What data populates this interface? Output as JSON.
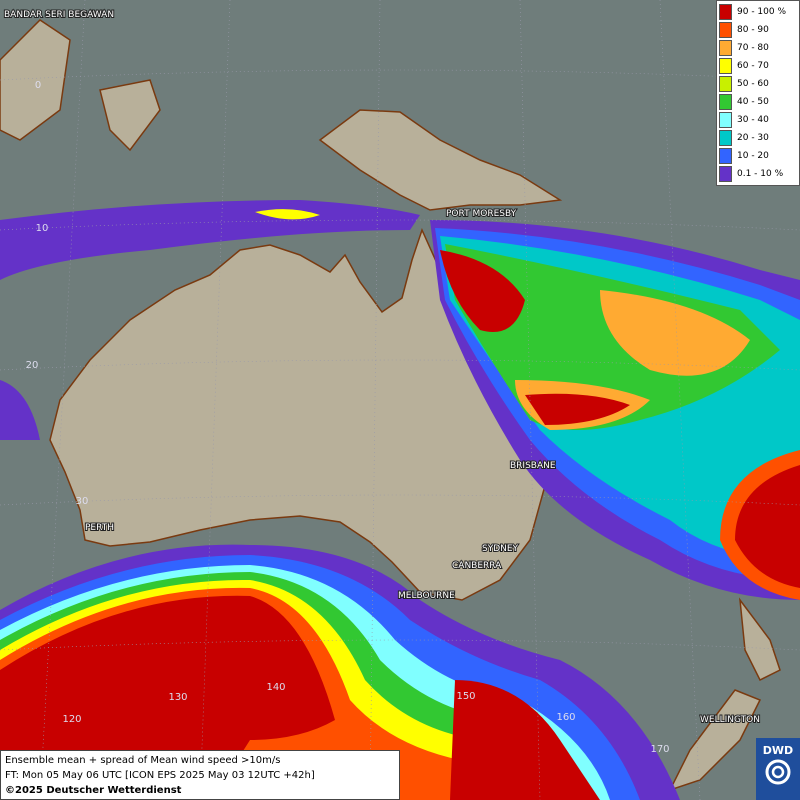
{
  "map": {
    "cities": [
      "BANDAR SERI BEGAWAN",
      "PORT MORESBY",
      "BRISBANE",
      "PERTH",
      "SYDNEY",
      "CANBERRA",
      "MELBOURNE",
      "WELLINGTON"
    ],
    "lat_labels": [
      "0",
      "10",
      "20",
      "30"
    ],
    "lon_labels": [
      "120",
      "130",
      "140",
      "150",
      "160",
      "170"
    ]
  },
  "legend": {
    "items": [
      {
        "label": "90 - 100 %",
        "color": "#c80000"
      },
      {
        "label": "80 - 90",
        "color": "#ff5000"
      },
      {
        "label": "70 - 80",
        "color": "#ffaa32"
      },
      {
        "label": "60 - 70",
        "color": "#ffff00"
      },
      {
        "label": "50 - 60",
        "color": "#c8f000"
      },
      {
        "label": "40 - 50",
        "color": "#32c832"
      },
      {
        "label": "30 - 40",
        "color": "#80ffff"
      },
      {
        "label": "20 - 30",
        "color": "#00c8c8"
      },
      {
        "label": "10 - 20",
        "color": "#3264ff"
      },
      {
        "label": "0.1 - 10 %",
        "color": "#6432c8"
      }
    ]
  },
  "footer": {
    "line1": "Ensemble mean + spread of Mean wind speed >10m/s",
    "line2": "FT: Mon 05 May 06 UTC [ICON EPS 2025 May 03 12UTC +42h]",
    "line3": "©2025 Deutscher Wetterdienst"
  },
  "logo": "DWD"
}
